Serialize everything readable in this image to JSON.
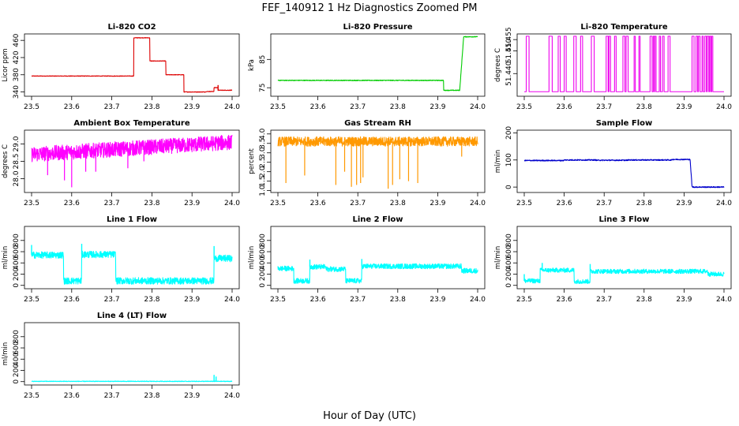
{
  "figure": {
    "title": "FEF_140912  1 Hz Diagnostics Zoomed PM",
    "xlabel": "Hour of Day (UTC)"
  },
  "chart_data": [
    {
      "type": "line",
      "title": "Li-820 CO2",
      "ylabel": "Licor ppm",
      "color": "#dd0000",
      "xlim": [
        23.5,
        24.0
      ],
      "ylim": [
        330,
        475
      ],
      "xticks": [
        "23.5",
        "23.6",
        "23.7",
        "23.8",
        "23.9",
        "24.0"
      ],
      "yticks": [
        "340",
        "380",
        "420",
        "460"
      ],
      "noise": 0.6,
      "segments": [
        [
          23.5,
          23.755,
          377
        ],
        [
          23.755,
          23.795,
          466
        ],
        [
          23.795,
          23.835,
          412
        ],
        [
          23.835,
          23.88,
          380
        ],
        [
          23.88,
          23.935,
          340
        ],
        [
          23.935,
          23.955,
          341
        ],
        [
          23.955,
          23.965,
          350
        ],
        [
          23.965,
          24.0,
          344
        ]
      ],
      "spikes": [
        [
          23.965,
          356
        ]
      ]
    },
    {
      "type": "line",
      "title": "Li-820 Pressure",
      "ylabel": "kPa",
      "color": "#00cc00",
      "xlim": [
        23.5,
        24.0
      ],
      "ylim": [
        72,
        94
      ],
      "xticks": [
        "23.5",
        "23.6",
        "23.7",
        "23.8",
        "23.9",
        "24.0"
      ],
      "yticks": [
        "75",
        "85"
      ],
      "noise": 0.12,
      "segments": [
        [
          23.5,
          23.915,
          77.6
        ],
        [
          23.915,
          23.96,
          74.1
        ],
        [
          23.96,
          24.0,
          93.0
        ]
      ],
      "ramps": [
        [
          23.955,
          23.965,
          74.1,
          93.0
        ]
      ]
    },
    {
      "type": "line",
      "title": "Li-820 Temperature",
      "ylabel": "degrees C",
      "color": "#ee00ee",
      "xlim": [
        23.5,
        24.0
      ],
      "ylim": [
        51.43,
        51.4575
      ],
      "xticks": [
        "23.5",
        "23.6",
        "23.7",
        "23.8",
        "23.9",
        "24.0"
      ],
      "yticks": [
        "51.440",
        "51.450",
        "51.455"
      ],
      "baseline": 51.432,
      "high": 51.4565,
      "pulses": [
        [
          23.505,
          23.512
        ],
        [
          23.562,
          23.57
        ],
        [
          23.585,
          23.59
        ],
        [
          23.6,
          23.605
        ],
        [
          23.624,
          23.63
        ],
        [
          23.641,
          23.646
        ],
        [
          23.668,
          23.675
        ],
        [
          23.705,
          23.71
        ],
        [
          23.712,
          23.716
        ],
        [
          23.726,
          23.73
        ],
        [
          23.747,
          23.752
        ],
        [
          23.755,
          23.76
        ],
        [
          23.775,
          23.778
        ],
        [
          23.787,
          23.79
        ],
        [
          23.815,
          23.82
        ],
        [
          23.823,
          23.826
        ],
        [
          23.827,
          23.83
        ],
        [
          23.838,
          23.841
        ],
        [
          23.846,
          23.85
        ],
        [
          23.86,
          23.865
        ],
        [
          23.92,
          23.925
        ],
        [
          23.93,
          23.934
        ],
        [
          23.936,
          23.94
        ],
        [
          23.945,
          23.948
        ],
        [
          23.952,
          23.956
        ],
        [
          23.958,
          23.962
        ],
        [
          23.964,
          23.967
        ],
        [
          23.969,
          23.972
        ]
      ]
    },
    {
      "type": "line",
      "title": "Ambient Box Temperature",
      "ylabel": "degrees C",
      "color": "#ff00ff",
      "xlim": [
        23.5,
        24.0
      ],
      "ylim": [
        27.6,
        29.4
      ],
      "xticks": [
        "23.5",
        "23.6",
        "23.7",
        "23.8",
        "23.9",
        "24.0"
      ],
      "yticks": [
        "28.0",
        "28.5",
        "29.0"
      ],
      "start": 28.7,
      "end": 29.05,
      "noise": 0.22,
      "dips": [
        [
          23.54,
          28.1
        ],
        [
          23.582,
          27.95
        ],
        [
          23.6,
          27.75
        ],
        [
          23.635,
          28.2
        ],
        [
          23.66,
          28.2
        ],
        [
          23.74,
          28.3
        ],
        [
          23.78,
          28.5
        ]
      ]
    },
    {
      "type": "line",
      "title": "Gas Stream RH",
      "ylabel": "percent",
      "color": "#ff9900",
      "xlim": [
        23.5,
        24.0
      ],
      "ylim": [
        0.9,
        4.2
      ],
      "xticks": [
        "23.5",
        "23.6",
        "23.7",
        "23.8",
        "23.9",
        "24.0"
      ],
      "yticks": [
        "1.0",
        "1.5",
        "2.0",
        "2.5",
        "3.0",
        "3.5",
        "4.0"
      ],
      "center": 3.6,
      "noise": 0.25,
      "dips": [
        [
          23.52,
          1.4
        ],
        [
          23.567,
          1.8
        ],
        [
          23.645,
          1.3
        ],
        [
          23.667,
          2.0
        ],
        [
          23.684,
          1.2
        ],
        [
          23.697,
          1.3
        ],
        [
          23.707,
          1.4
        ],
        [
          23.713,
          1.7
        ],
        [
          23.776,
          1.1
        ],
        [
          23.787,
          1.3
        ],
        [
          23.805,
          1.6
        ],
        [
          23.827,
          1.5
        ],
        [
          23.85,
          1.4
        ],
        [
          23.96,
          2.8
        ]
      ]
    },
    {
      "type": "line",
      "title": "Sample Flow",
      "ylabel": "ml/min",
      "color": "#0000cc",
      "xlim": [
        23.5,
        24.0
      ],
      "ylim": [
        -20,
        210
      ],
      "xticks": [
        "23.5",
        "23.6",
        "23.7",
        "23.8",
        "23.9",
        "24.0"
      ],
      "yticks": [
        "0",
        "100",
        "200"
      ],
      "noise": 2.0,
      "segments": [
        [
          23.5,
          23.6,
          98
        ],
        [
          23.6,
          23.68,
          100
        ],
        [
          23.68,
          23.76,
          99
        ],
        [
          23.76,
          23.87,
          100
        ],
        [
          23.87,
          23.915,
          102
        ],
        [
          23.92,
          24.0,
          0
        ]
      ],
      "ramps": [
        [
          23.915,
          23.92,
          102,
          3
        ]
      ]
    },
    {
      "type": "line",
      "title": "Line 1 Flow",
      "ylabel": "ml/min",
      "color": "#00ffff",
      "xlim": [
        23.5,
        24.0
      ],
      "ylim": [
        -60,
        1050
      ],
      "xticks": [
        "23.5",
        "23.6",
        "23.7",
        "23.8",
        "23.9",
        "24.0"
      ],
      "yticks": [
        "0",
        "200",
        "400",
        "600",
        "800"
      ],
      "noise": 60,
      "segments": [
        [
          23.5,
          23.58,
          540
        ],
        [
          23.58,
          23.625,
          80
        ],
        [
          23.625,
          23.71,
          550
        ],
        [
          23.71,
          23.955,
          80
        ],
        [
          23.958,
          24.0,
          480
        ]
      ],
      "spikes": [
        [
          23.5,
          720
        ],
        [
          23.625,
          740
        ],
        [
          23.955,
          700
        ]
      ]
    },
    {
      "type": "line",
      "title": "Line 2 Flow",
      "ylabel": "ml/min",
      "color": "#00ffff",
      "xlim": [
        23.5,
        24.0
      ],
      "ylim": [
        -60,
        1050
      ],
      "xticks": [
        "23.5",
        "23.6",
        "23.7",
        "23.8",
        "23.9",
        "24.0"
      ],
      "yticks": [
        "0",
        "200",
        "400",
        "600",
        "800"
      ],
      "noise": 45,
      "segments": [
        [
          23.5,
          23.54,
          300
        ],
        [
          23.54,
          23.58,
          80
        ],
        [
          23.58,
          23.62,
          330
        ],
        [
          23.62,
          23.67,
          290
        ],
        [
          23.67,
          23.71,
          80
        ],
        [
          23.71,
          23.96,
          340
        ],
        [
          23.96,
          24.0,
          260
        ]
      ],
      "spikes": [
        [
          23.58,
          460
        ],
        [
          23.71,
          470
        ]
      ]
    },
    {
      "type": "line",
      "title": "Line 3 Flow",
      "ylabel": "ml/min",
      "color": "#00ffff",
      "xlim": [
        23.5,
        24.0
      ],
      "ylim": [
        -60,
        1050
      ],
      "xticks": [
        "23.5",
        "23.6",
        "23.7",
        "23.8",
        "23.9",
        "24.0"
      ],
      "yticks": [
        "0",
        "200",
        "400",
        "600",
        "800"
      ],
      "noise": 40,
      "segments": [
        [
          23.5,
          23.54,
          80
        ],
        [
          23.54,
          23.625,
          270
        ],
        [
          23.625,
          23.665,
          70
        ],
        [
          23.665,
          23.96,
          250
        ],
        [
          23.96,
          24.0,
          200
        ]
      ],
      "spikes": [
        [
          23.5,
          200
        ],
        [
          23.545,
          400
        ],
        [
          23.665,
          380
        ]
      ]
    },
    {
      "type": "line",
      "title": "Line 4 (LT) Flow",
      "ylabel": "ml/min",
      "color": "#00ffff",
      "xlim": [
        23.5,
        24.0
      ],
      "ylim": [
        -60,
        1050
      ],
      "xticks": [
        "23.5",
        "23.6",
        "23.7",
        "23.8",
        "23.9",
        "24.0"
      ],
      "yticks": [
        "0",
        "200",
        "400",
        "600",
        "800"
      ],
      "noise": 5,
      "segments": [
        [
          23.5,
          24.0,
          5
        ]
      ],
      "spikes": [
        [
          23.955,
          120
        ],
        [
          23.96,
          90
        ]
      ]
    }
  ]
}
